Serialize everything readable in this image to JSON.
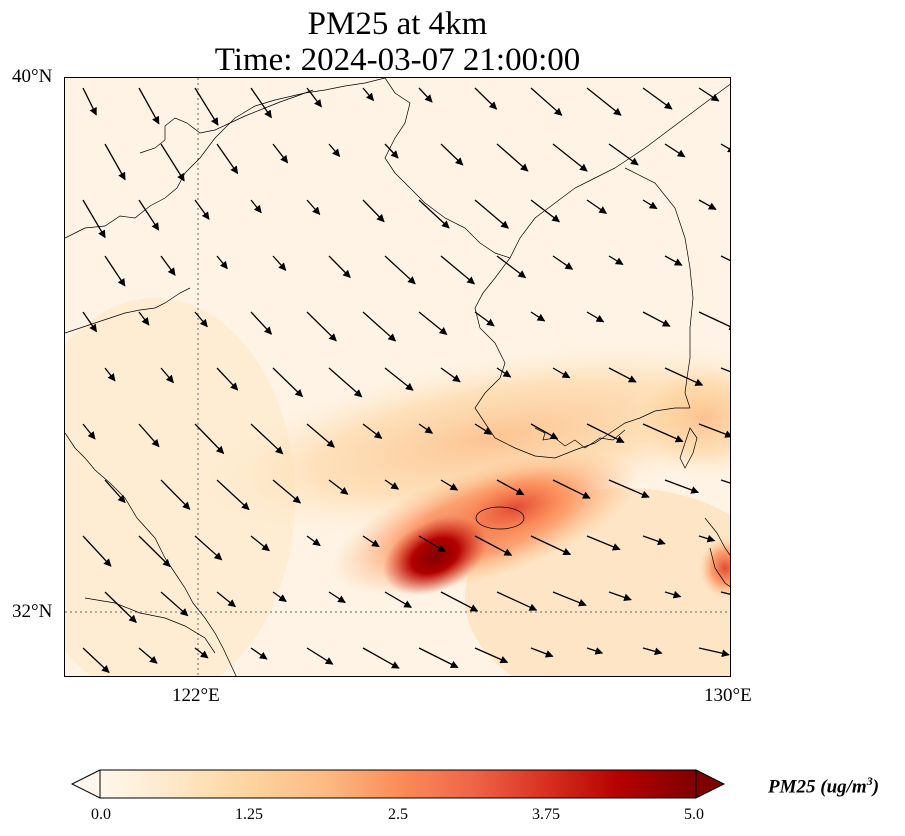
{
  "title": {
    "line1": "PM25 at 4km",
    "line2": "Time: 2024-03-07 21:00:00"
  },
  "map": {
    "lat_labels": [
      "40°N",
      "32°N"
    ],
    "lon_labels": [
      "122°E",
      "130°E"
    ],
    "extent": {
      "lon_min": 120,
      "lon_max": 130,
      "lat_min": 31,
      "lat_max": 40
    },
    "gridlines": {
      "lons": [
        122
      ],
      "lats": [
        32
      ]
    },
    "field": "PM25",
    "wind_direction": "northwest to southeast",
    "colors": {
      "land_line": "#000000",
      "background": "#fef3e4"
    }
  },
  "colorbar": {
    "label": "PM25 (ug/m^3)",
    "label_display": "PM25 (ug/m3)",
    "ticks": [
      "0.0",
      "1.25",
      "2.5",
      "3.75",
      "5.0"
    ],
    "range": [
      0,
      5
    ],
    "colormap": "OrRd",
    "colors": [
      "#fff7ec",
      "#fee8c8",
      "#fdd49e",
      "#fdbb84",
      "#fc8d59",
      "#ef6548",
      "#d7301f",
      "#b30000",
      "#7f0000"
    ]
  }
}
